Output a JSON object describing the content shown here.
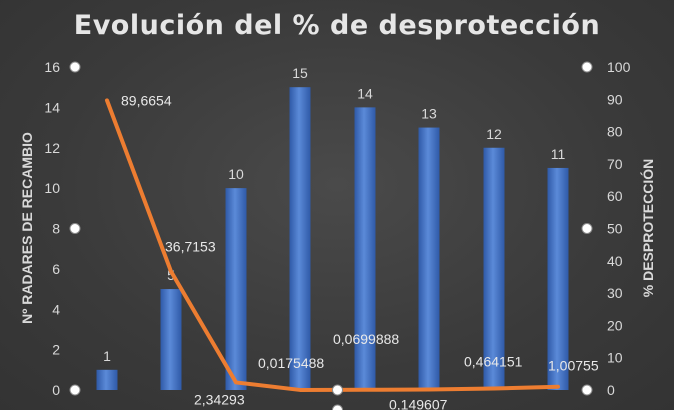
{
  "chart_data": {
    "type": "bar",
    "title": "Evolución del % de desprotección",
    "categories": [
      "",
      "",
      "",
      "",
      "",
      "",
      "",
      ""
    ],
    "series": [
      {
        "type": "bar",
        "axis": "left",
        "values": [
          1,
          5,
          10,
          15,
          14,
          13,
          12,
          11
        ],
        "labels": [
          "1",
          "5",
          "10",
          "15",
          "14",
          "13",
          "12",
          "11"
        ],
        "color": "#4472c4"
      },
      {
        "type": "line",
        "axis": "right",
        "values": [
          89.6654,
          36.7153,
          2.34293,
          0.0175488,
          0.0699888,
          0.149607,
          0.464151,
          1.00755
        ],
        "labels": [
          "89,6654",
          "36,7153",
          "2,34293",
          "0,0175488",
          "0,0699888",
          "0,149607",
          "0,464151",
          "1,00755"
        ],
        "color": "#ed7d31"
      }
    ],
    "y_left": {
      "label": "Nº RADARES DE RECAMBIO",
      "range": [
        0,
        16
      ],
      "ticks": [
        "0",
        "2",
        "4",
        "6",
        "8",
        "10",
        "12",
        "14",
        "16"
      ]
    },
    "y_right": {
      "label": "% DESPROTECCIÓN",
      "range": [
        0,
        100
      ],
      "ticks": [
        "0",
        "10",
        "20",
        "30",
        "40",
        "50",
        "60",
        "70",
        "80",
        "90",
        "100"
      ]
    },
    "grid": false,
    "legend": "none"
  }
}
